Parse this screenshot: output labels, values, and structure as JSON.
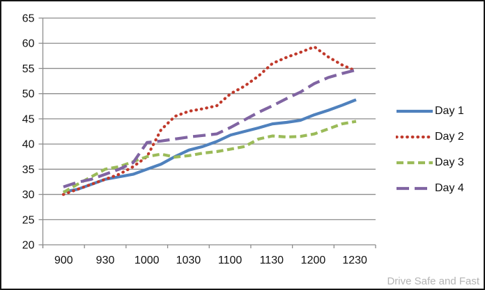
{
  "watermark": "Drive Safe and Fast",
  "chart_data": {
    "type": "line",
    "title": "",
    "xlabel": "",
    "ylabel": "",
    "ylim": [
      20,
      65
    ],
    "yticks": [
      20,
      25,
      30,
      35,
      40,
      45,
      50,
      55,
      60,
      65
    ],
    "x_tick_labels": [
      "900",
      "930",
      "1000",
      "1030",
      "1100",
      "1130",
      "1200",
      "1230"
    ],
    "x": [
      900,
      910,
      920,
      930,
      940,
      950,
      1000,
      1010,
      1020,
      1030,
      1040,
      1050,
      1100,
      1110,
      1120,
      1130,
      1140,
      1150,
      1200,
      1210,
      1220,
      1230
    ],
    "x_labeled_every": 3,
    "grid": "horizontal-only",
    "legend_position": "right",
    "axis_color": "#8c8c8c",
    "text_color": "#111111",
    "series": [
      {
        "name": "Day 1",
        "style": "solid",
        "color": "#4f81bd",
        "values": [
          30.5,
          31,
          32,
          33,
          33.5,
          34,
          35,
          36,
          37.5,
          38.8,
          39.5,
          40.5,
          41.8,
          42.5,
          43.2,
          44,
          44.3,
          44.7,
          45.8,
          46.7,
          47.7,
          48.8
        ]
      },
      {
        "name": "Day 2",
        "style": "dotted",
        "color": "#c0392b",
        "values": [
          30,
          31,
          32,
          33,
          34,
          35.5,
          37.5,
          42.8,
          45.5,
          46.5,
          47,
          47.6,
          50,
          51.5,
          53.5,
          56,
          57.2,
          58.2,
          59.3,
          57.3,
          55.7,
          54.5
        ]
      },
      {
        "name": "Day 3",
        "style": "dashed",
        "color": "#9bbb59",
        "values": [
          30.4,
          32,
          33.5,
          35,
          35.5,
          36.5,
          37.5,
          38,
          37.4,
          37.7,
          38.2,
          38.5,
          39,
          39.5,
          41,
          41.6,
          41.4,
          41.5,
          42,
          43,
          44,
          44.5
        ]
      },
      {
        "name": "Day 4",
        "style": "long-dash",
        "color": "#8064a2",
        "values": [
          31.5,
          32.4,
          33,
          34,
          35,
          36.3,
          40.3,
          40.6,
          41,
          41.4,
          41.7,
          42,
          43.3,
          44.8,
          46.3,
          47.6,
          49,
          50.3,
          52,
          53.2,
          54,
          54.7
        ]
      }
    ]
  }
}
